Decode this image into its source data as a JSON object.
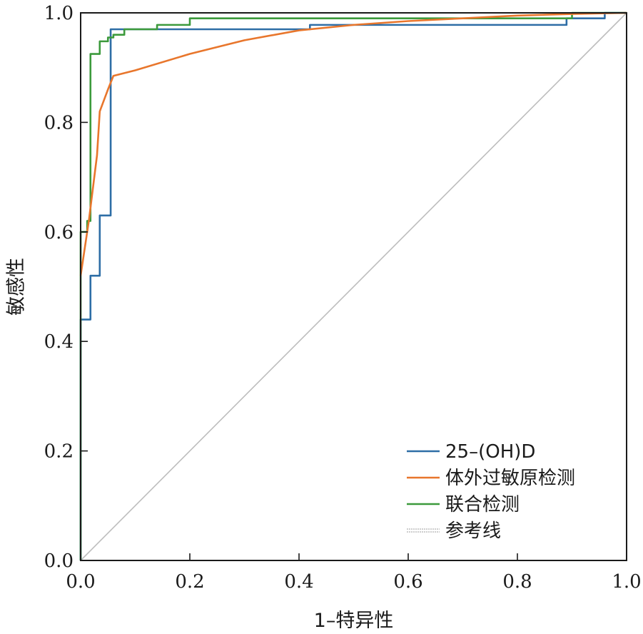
{
  "chart_data": {
    "type": "line",
    "title": "",
    "xlabel": "1–特异性",
    "ylabel": "敏感性",
    "xlim": [
      0,
      1
    ],
    "ylim": [
      0,
      1
    ],
    "x_ticks": [
      "0.0",
      "0.2",
      "0.4",
      "0.6",
      "0.8",
      "1.0"
    ],
    "y_ticks": [
      "0.0",
      "0.2",
      "0.4",
      "0.6",
      "0.8",
      "1.0"
    ],
    "grid": false,
    "legend_position": "bottom-right",
    "series": [
      {
        "name": "25–(OH)D",
        "color": "#2e6ea6",
        "x": [
          0,
          0,
          0.018,
          0.018,
          0.035,
          0.035,
          0.055,
          0.055,
          0.42,
          0.42,
          0.89,
          0.89,
          0.96,
          0.96,
          1.0
        ],
        "y": [
          0,
          0.44,
          0.44,
          0.52,
          0.52,
          0.63,
          0.63,
          0.97,
          0.97,
          0.978,
          0.978,
          0.99,
          0.99,
          1.0,
          1.0
        ]
      },
      {
        "name": "体外过敏原检测",
        "color": "#e8762c",
        "x": [
          0,
          0.015,
          0.03,
          0.035,
          0.05,
          0.06,
          0.1,
          0.2,
          0.3,
          0.4,
          0.5,
          0.6,
          0.7,
          0.8,
          0.9,
          1.0
        ],
        "y": [
          0.52,
          0.62,
          0.74,
          0.82,
          0.86,
          0.885,
          0.895,
          0.925,
          0.95,
          0.968,
          0.978,
          0.985,
          0.99,
          0.995,
          0.998,
          1.0
        ]
      },
      {
        "name": "联合检测",
        "color": "#3c9a3c",
        "x": [
          0,
          0,
          0.012,
          0.012,
          0.018,
          0.018,
          0.035,
          0.035,
          0.05,
          0.05,
          0.06,
          0.06,
          0.08,
          0.08,
          0.14,
          0.14,
          0.2,
          0.2,
          0.9,
          0.9,
          1.0
        ],
        "y": [
          0,
          0.6,
          0.6,
          0.62,
          0.62,
          0.925,
          0.925,
          0.948,
          0.948,
          0.955,
          0.955,
          0.96,
          0.96,
          0.97,
          0.97,
          0.978,
          0.978,
          0.99,
          0.99,
          1.0,
          1.0
        ]
      }
    ],
    "reference_line": {
      "name": "参考线",
      "color": "#bdbdbd",
      "x": [
        0,
        1
      ],
      "y": [
        0,
        1
      ]
    }
  }
}
